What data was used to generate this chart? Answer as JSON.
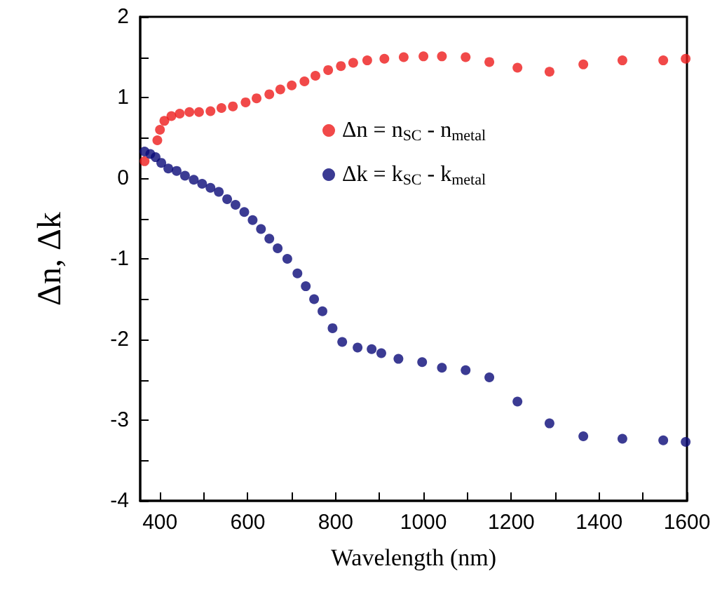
{
  "chart_data": {
    "type": "scatter",
    "xlabel": "Wavelength (nm)",
    "ylabel": "Δn, Δk",
    "xlim": [
      355,
      1600
    ],
    "xticks": [
      400,
      600,
      800,
      1000,
      1200,
      1400,
      1600
    ],
    "ylim": [
      -4,
      2
    ],
    "yticks": [
      -4,
      -3,
      -2,
      -1,
      0,
      1,
      2
    ],
    "marker": "circle",
    "legend": "top right",
    "grid": false,
    "series": [
      {
        "name": "Δn = n$_{SC}$ - n$_{metal}$",
        "color": "#ee1c1c",
        "x": [
          365,
          378,
          387,
          394,
          400,
          410,
          426,
          445,
          467,
          489,
          515,
          540,
          566,
          595,
          620,
          649,
          674,
          700,
          729,
          754,
          783,
          812,
          840,
          872,
          911,
          955,
          1000,
          1042,
          1096,
          1150,
          1214,
          1287,
          1364,
          1453,
          1546,
          1597
        ],
        "values": [
          0.21,
          null,
          null,
          0.47,
          0.6,
          0.71,
          0.77,
          0.8,
          0.82,
          0.82,
          0.83,
          0.87,
          0.89,
          0.94,
          0.99,
          1.04,
          1.1,
          1.15,
          1.2,
          1.27,
          1.34,
          1.39,
          1.43,
          1.46,
          1.48,
          1.5,
          1.51,
          1.51,
          1.5,
          1.44,
          1.37,
          1.32,
          1.41,
          1.46,
          1.46,
          1.48
        ]
      },
      {
        "name": "Δk = k$_{SC}$ - k$_{metal}$",
        "color": "#0a0a78",
        "x": [
          365,
          378,
          390,
          403,
          419,
          438,
          457,
          477,
          496,
          515,
          534,
          553,
          572,
          592,
          611,
          630,
          649,
          668,
          690,
          713,
          732,
          751,
          770,
          793,
          815,
          850,
          882,
          904,
          943,
          997,
          1042,
          1096,
          1150,
          1214,
          1287,
          1364,
          1453,
          1546,
          1597
        ],
        "values": [
          0.33,
          0.3,
          0.26,
          0.19,
          0.12,
          0.09,
          0.03,
          -0.02,
          -0.07,
          -0.12,
          -0.17,
          -0.26,
          -0.33,
          -0.42,
          -0.52,
          -0.63,
          -0.75,
          -0.87,
          -1.0,
          -1.18,
          -1.34,
          -1.5,
          -1.65,
          -1.86,
          -2.03,
          -2.1,
          -2.12,
          -2.17,
          -2.24,
          -2.28,
          -2.35,
          -2.38,
          -2.47,
          -2.77,
          -3.04,
          -3.2,
          -3.23,
          -3.25,
          -3.27
        ]
      }
    ]
  }
}
